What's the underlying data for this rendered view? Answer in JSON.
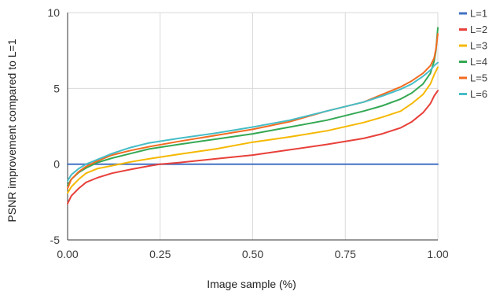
{
  "chart_data": {
    "type": "line",
    "title": "",
    "xlabel": "Image sample (%)",
    "ylabel": "PSNR improvement compared to L=1",
    "xlim": [
      0,
      1
    ],
    "ylim": [
      -5,
      10
    ],
    "x_ticks": [
      {
        "value": 0,
        "label": "0.00"
      },
      {
        "value": 0.25,
        "label": "0.25"
      },
      {
        "value": 0.5,
        "label": "0.50"
      },
      {
        "value": 0.75,
        "label": "0.75"
      },
      {
        "value": 1,
        "label": "1.00"
      }
    ],
    "y_ticks": [
      {
        "value": -5,
        "label": "-5"
      },
      {
        "value": 0,
        "label": "0"
      },
      {
        "value": 5,
        "label": "5"
      },
      {
        "value": 10,
        "label": "10"
      }
    ],
    "grid": true,
    "legend_position": "right",
    "series": [
      {
        "name": "L=1",
        "color": "#4472c4",
        "x": [
          0,
          1
        ],
        "y": [
          0,
          0
        ]
      },
      {
        "name": "L=2",
        "color": "#e8403a",
        "x": [
          0,
          0.01,
          0.03,
          0.05,
          0.08,
          0.12,
          0.17,
          0.22,
          0.25,
          0.3,
          0.4,
          0.5,
          0.6,
          0.7,
          0.8,
          0.85,
          0.9,
          0.93,
          0.96,
          0.98,
          0.99,
          1
        ],
        "y": [
          -2.6,
          -2.1,
          -1.6,
          -1.2,
          -0.9,
          -0.6,
          -0.35,
          -0.12,
          0,
          0.1,
          0.35,
          0.6,
          0.95,
          1.3,
          1.7,
          2.0,
          2.4,
          2.8,
          3.4,
          4.0,
          4.5,
          4.85
        ]
      },
      {
        "name": "L=3",
        "color": "#f5b800",
        "x": [
          0,
          0.01,
          0.03,
          0.05,
          0.08,
          0.12,
          0.17,
          0.22,
          0.3,
          0.4,
          0.5,
          0.6,
          0.7,
          0.8,
          0.85,
          0.9,
          0.93,
          0.96,
          0.98,
          0.99,
          1
        ],
        "y": [
          -1.9,
          -1.5,
          -1.0,
          -0.6,
          -0.3,
          -0.1,
          0.15,
          0.35,
          0.65,
          1.0,
          1.45,
          1.8,
          2.2,
          2.75,
          3.1,
          3.5,
          4.0,
          4.6,
          5.3,
          5.9,
          6.4
        ]
      },
      {
        "name": "L=4",
        "color": "#34a853",
        "x": [
          0,
          0.01,
          0.03,
          0.05,
          0.08,
          0.12,
          0.17,
          0.22,
          0.3,
          0.4,
          0.5,
          0.6,
          0.7,
          0.8,
          0.85,
          0.9,
          0.93,
          0.96,
          0.98,
          0.99,
          0.995,
          1
        ],
        "y": [
          -1.4,
          -1.0,
          -0.55,
          -0.25,
          0.1,
          0.4,
          0.7,
          1.0,
          1.3,
          1.65,
          2.0,
          2.45,
          2.9,
          3.5,
          3.85,
          4.3,
          4.7,
          5.3,
          6.0,
          6.8,
          7.5,
          9.0
        ]
      },
      {
        "name": "L=5",
        "color": "#f26b21",
        "x": [
          0,
          0.01,
          0.03,
          0.05,
          0.08,
          0.12,
          0.17,
          0.22,
          0.3,
          0.4,
          0.5,
          0.6,
          0.7,
          0.8,
          0.85,
          0.9,
          0.93,
          0.96,
          0.98,
          0.99,
          0.995,
          1
        ],
        "y": [
          -1.6,
          -1.0,
          -0.5,
          -0.15,
          0.2,
          0.6,
          0.9,
          1.15,
          1.5,
          1.9,
          2.3,
          2.8,
          3.5,
          4.1,
          4.6,
          5.1,
          5.5,
          6.0,
          6.5,
          7.0,
          7.6,
          8.6
        ]
      },
      {
        "name": "L=6",
        "color": "#46bdc6",
        "x": [
          0,
          0.01,
          0.03,
          0.05,
          0.08,
          0.12,
          0.17,
          0.22,
          0.3,
          0.4,
          0.5,
          0.6,
          0.7,
          0.8,
          0.85,
          0.9,
          0.93,
          0.96,
          0.98,
          0.99,
          1
        ],
        "y": [
          -1.1,
          -0.7,
          -0.3,
          0.0,
          0.3,
          0.7,
          1.1,
          1.4,
          1.7,
          2.05,
          2.45,
          2.9,
          3.5,
          4.1,
          4.5,
          4.95,
          5.3,
          5.8,
          6.2,
          6.5,
          6.7
        ]
      }
    ]
  }
}
